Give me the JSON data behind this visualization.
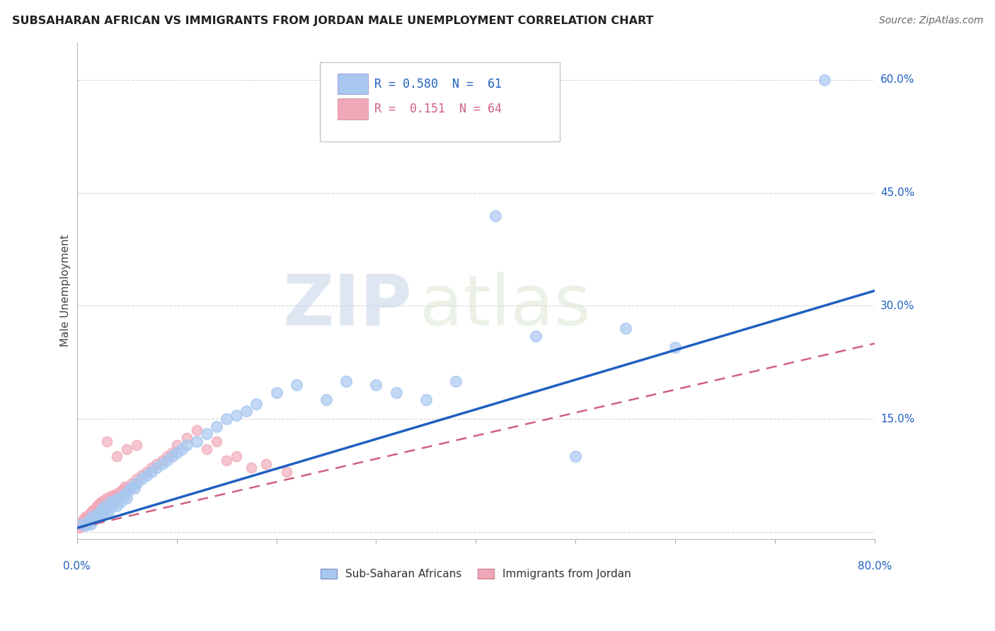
{
  "title": "SUBSAHARAN AFRICAN VS IMMIGRANTS FROM JORDAN MALE UNEMPLOYMENT CORRELATION CHART",
  "source": "Source: ZipAtlas.com",
  "ylabel": "Male Unemployment",
  "y_ticks": [
    0.0,
    0.15,
    0.3,
    0.45,
    0.6
  ],
  "y_tick_labels": [
    "",
    "15.0%",
    "30.0%",
    "45.0%",
    "60.0%"
  ],
  "xlim": [
    0.0,
    0.8
  ],
  "ylim": [
    -0.01,
    0.65
  ],
  "color_blue": "#a8c8f0",
  "color_pink": "#f0a8b8",
  "color_line_blue": "#2060c0",
  "color_line_pink": "#d06080",
  "watermark_zip": "ZIP",
  "watermark_atlas": "atlas",
  "legend_text1": "R = 0.580  N =  61",
  "legend_text2": "R =  0.151  N = 64",
  "blue_x": [
    0.005,
    0.008,
    0.01,
    0.012,
    0.014,
    0.015,
    0.016,
    0.018,
    0.02,
    0.022,
    0.024,
    0.025,
    0.026,
    0.028,
    0.03,
    0.032,
    0.034,
    0.035,
    0.036,
    0.038,
    0.04,
    0.042,
    0.044,
    0.046,
    0.048,
    0.05,
    0.052,
    0.055,
    0.058,
    0.06,
    0.065,
    0.07,
    0.075,
    0.08,
    0.085,
    0.09,
    0.095,
    0.1,
    0.105,
    0.11,
    0.12,
    0.13,
    0.14,
    0.15,
    0.16,
    0.17,
    0.18,
    0.2,
    0.22,
    0.25,
    0.27,
    0.3,
    0.32,
    0.35,
    0.38,
    0.42,
    0.46,
    0.5,
    0.55,
    0.6,
    0.75
  ],
  "blue_y": [
    0.01,
    0.008,
    0.012,
    0.015,
    0.01,
    0.02,
    0.015,
    0.018,
    0.022,
    0.025,
    0.02,
    0.03,
    0.025,
    0.035,
    0.03,
    0.028,
    0.04,
    0.035,
    0.038,
    0.042,
    0.035,
    0.045,
    0.04,
    0.048,
    0.05,
    0.045,
    0.055,
    0.06,
    0.058,
    0.065,
    0.07,
    0.075,
    0.08,
    0.085,
    0.09,
    0.095,
    0.1,
    0.105,
    0.11,
    0.115,
    0.12,
    0.13,
    0.14,
    0.15,
    0.155,
    0.16,
    0.17,
    0.185,
    0.195,
    0.175,
    0.2,
    0.195,
    0.185,
    0.175,
    0.2,
    0.42,
    0.26,
    0.1,
    0.27,
    0.245,
    0.6
  ],
  "pink_x": [
    0.002,
    0.003,
    0.004,
    0.005,
    0.005,
    0.006,
    0.007,
    0.007,
    0.008,
    0.009,
    0.01,
    0.01,
    0.011,
    0.012,
    0.013,
    0.014,
    0.015,
    0.015,
    0.016,
    0.017,
    0.018,
    0.019,
    0.02,
    0.02,
    0.022,
    0.023,
    0.024,
    0.025,
    0.026,
    0.027,
    0.028,
    0.03,
    0.032,
    0.034,
    0.036,
    0.038,
    0.04,
    0.042,
    0.045,
    0.048,
    0.05,
    0.055,
    0.06,
    0.065,
    0.07,
    0.075,
    0.08,
    0.085,
    0.09,
    0.095,
    0.1,
    0.11,
    0.12,
    0.13,
    0.14,
    0.15,
    0.16,
    0.175,
    0.19,
    0.21,
    0.03,
    0.04,
    0.05,
    0.06
  ],
  "pink_y": [
    0.005,
    0.008,
    0.01,
    0.012,
    0.015,
    0.01,
    0.012,
    0.018,
    0.015,
    0.02,
    0.01,
    0.018,
    0.015,
    0.022,
    0.02,
    0.025,
    0.015,
    0.028,
    0.022,
    0.03,
    0.025,
    0.032,
    0.02,
    0.035,
    0.028,
    0.038,
    0.032,
    0.04,
    0.035,
    0.042,
    0.038,
    0.045,
    0.042,
    0.048,
    0.045,
    0.05,
    0.048,
    0.052,
    0.055,
    0.06,
    0.058,
    0.065,
    0.07,
    0.075,
    0.08,
    0.085,
    0.09,
    0.095,
    0.1,
    0.105,
    0.115,
    0.125,
    0.135,
    0.11,
    0.12,
    0.095,
    0.1,
    0.085,
    0.09,
    0.08,
    0.12,
    0.1,
    0.11,
    0.115
  ]
}
